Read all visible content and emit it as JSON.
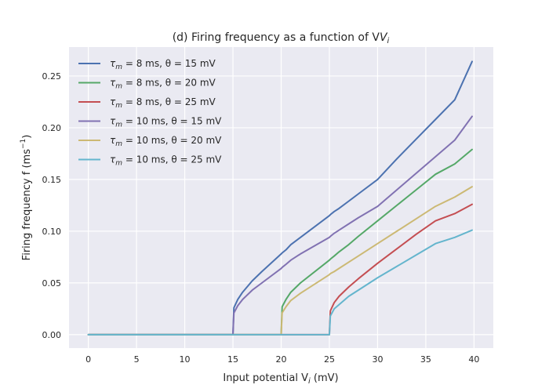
{
  "chart_data": {
    "type": "line",
    "title": "(d) Firing frequency as a function of V",
    "title_subscript": "i",
    "xlabel": "Input potential V",
    "xlabel_subscript": "i",
    "xlabel_unit": " (mV)",
    "ylabel": "Firing frequency f (ms",
    "ylabel_superscript": "−1",
    "ylabel_suffix": ")",
    "xlim": [
      -2,
      42
    ],
    "ylim": [
      -0.013,
      0.278
    ],
    "xticks": [
      0,
      5,
      10,
      15,
      20,
      25,
      30,
      35,
      40
    ],
    "xtick_labels": [
      "0",
      "5",
      "10",
      "15",
      "20",
      "25",
      "30",
      "35",
      "40"
    ],
    "yticks": [
      0.0,
      0.05,
      0.1,
      0.15,
      0.2,
      0.25
    ],
    "ytick_labels": [
      "0.00",
      "0.05",
      "0.10",
      "0.15",
      "0.20",
      "0.25"
    ],
    "grid": true,
    "background": "#eaeaf2",
    "legend_position": "top-left",
    "x": [
      0,
      15,
      15.1,
      15.5,
      16,
      17,
      18,
      20,
      20.1,
      20.5,
      21,
      22,
      25,
      25.1,
      25.5,
      26,
      27,
      28,
      30,
      32,
      34,
      36,
      38,
      39.8
    ],
    "series": [
      {
        "name": "τ",
        "name_sub": "m",
        "name_rest": " = 8 ms, θ = 15 mV",
        "color": "#4c72b0",
        "values": [
          0,
          0,
          0.026,
          0.034,
          0.041,
          0.052,
          0.061,
          0.078,
          0.079,
          0.082,
          0.087,
          0.094,
          0.115,
          0.116,
          0.119,
          0.122,
          0.129,
          0.136,
          0.15,
          0.17,
          0.189,
          0.208,
          0.227,
          0.264
        ]
      },
      {
        "name": "τ",
        "name_sub": "m",
        "name_rest": " = 8 ms, θ = 20 mV",
        "color": "#55a868",
        "values": [
          0,
          0,
          0,
          0,
          0,
          0,
          0,
          0,
          0.027,
          0.034,
          0.041,
          0.05,
          0.072,
          0.073,
          0.076,
          0.08,
          0.087,
          0.095,
          0.11,
          0.125,
          0.14,
          0.155,
          0.165,
          0.179
        ]
      },
      {
        "name": "τ",
        "name_sub": "m",
        "name_rest": " = 8 ms, θ = 25 mV",
        "color": "#c44e52",
        "values": [
          0,
          0,
          0,
          0,
          0,
          0,
          0,
          0,
          0,
          0,
          0,
          0,
          0,
          0.023,
          0.031,
          0.037,
          0.046,
          0.054,
          0.069,
          0.083,
          0.097,
          0.11,
          0.117,
          0.126
        ]
      },
      {
        "name": "τ",
        "name_sub": "m",
        "name_rest": " = 10 ms, θ = 15 mV",
        "color": "#8172b2",
        "values": [
          0,
          0,
          0.021,
          0.028,
          0.034,
          0.043,
          0.05,
          0.064,
          0.065,
          0.068,
          0.072,
          0.078,
          0.094,
          0.095,
          0.098,
          0.101,
          0.107,
          0.113,
          0.124,
          0.14,
          0.156,
          0.172,
          0.188,
          0.211
        ]
      },
      {
        "name": "τ",
        "name_sub": "m",
        "name_rest": " = 10 ms, θ = 20 mV",
        "color": "#ccb974",
        "values": [
          0,
          0,
          0,
          0,
          0,
          0,
          0,
          0,
          0.021,
          0.027,
          0.033,
          0.04,
          0.058,
          0.059,
          0.061,
          0.064,
          0.07,
          0.076,
          0.088,
          0.1,
          0.112,
          0.124,
          0.133,
          0.143
        ]
      },
      {
        "name": "τ",
        "name_sub": "m",
        "name_rest": " = 10 ms, θ = 25 mV",
        "color": "#64b5cd",
        "values": [
          0,
          0,
          0,
          0,
          0,
          0,
          0,
          0,
          0,
          0,
          0,
          0,
          0,
          0.018,
          0.025,
          0.029,
          0.037,
          0.043,
          0.055,
          0.066,
          0.077,
          0.088,
          0.094,
          0.101
        ]
      }
    ]
  }
}
